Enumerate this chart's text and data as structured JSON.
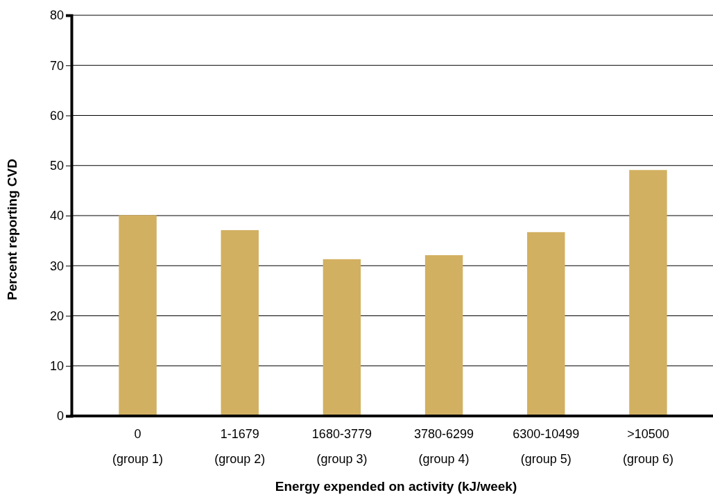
{
  "chart_data": {
    "type": "bar",
    "xlabel": "Energy expended on activity (kJ/week)",
    "ylabel": "Percent reporting CVD",
    "categories": [
      "0\n(group 1)",
      "1-1679\n(group 2)",
      "1680-3779\n(group 3)",
      "3780-6299\n(group 4)",
      "6300-10499\n(group 5)",
      ">10500\n(group 6)"
    ],
    "values": [
      40.1,
      37.1,
      31.3,
      32.1,
      36.7,
      49.1
    ],
    "color": "#d2b061",
    "ylim": [
      0,
      80
    ],
    "yticks": [
      0,
      10,
      20,
      30,
      40,
      50,
      60,
      70,
      80
    ],
    "grid": "y"
  }
}
